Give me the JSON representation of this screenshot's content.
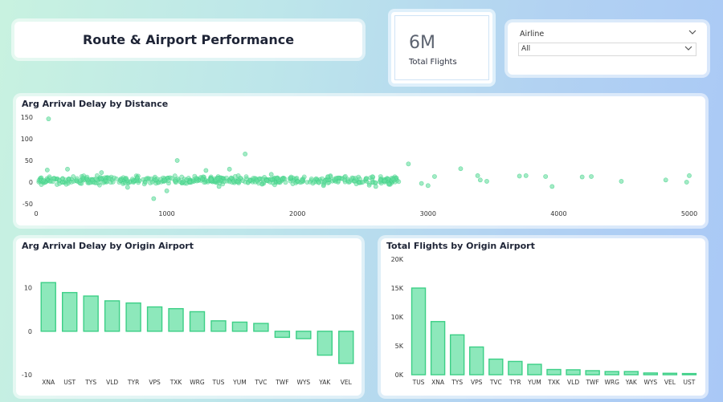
{
  "page_title": "Route & Airport Performance",
  "kpi": {
    "value": "6M",
    "label": "Total Flights"
  },
  "filter": {
    "label": "Airline",
    "value": "All"
  },
  "colors": {
    "fill": "#8de8bb",
    "stroke": "#3ccf86",
    "point": "#66de9e"
  },
  "chart_data": [
    {
      "type": "scatter",
      "title": "Arg Arrival Delay by Distance",
      "xlim": [
        0,
        5000
      ],
      "ylim": [
        -50,
        150
      ],
      "x_ticks": [
        "0",
        "1000",
        "2000",
        "3000",
        "4000",
        "5000"
      ],
      "y_ticks": [
        "150",
        "100",
        "50",
        "0",
        "-50"
      ],
      "grid": false,
      "outliers": [
        [
          95,
          146
        ],
        [
          240,
          30
        ],
        [
          85,
          28
        ],
        [
          1080,
          50
        ],
        [
          1300,
          27
        ],
        [
          1480,
          30
        ],
        [
          1600,
          65
        ],
        [
          2850,
          42
        ],
        [
          3250,
          31
        ],
        [
          3380,
          15
        ],
        [
          3400,
          5
        ],
        [
          3450,
          2
        ],
        [
          3700,
          14
        ],
        [
          3750,
          15
        ],
        [
          3900,
          13
        ],
        [
          3950,
          -10
        ],
        [
          4180,
          12
        ],
        [
          4250,
          13
        ],
        [
          4480,
          2
        ],
        [
          4820,
          5
        ],
        [
          4980,
          0
        ],
        [
          5000,
          15
        ],
        [
          2700,
          -5
        ],
        [
          2600,
          -10
        ],
        [
          2550,
          -7
        ],
        [
          2500,
          0
        ],
        [
          900,
          -38
        ],
        [
          1000,
          -20
        ],
        [
          3050,
          13
        ],
        [
          2950,
          -3
        ],
        [
          3000,
          -8
        ],
        [
          2730,
          8
        ],
        [
          1400,
          -10
        ],
        [
          700,
          -12
        ],
        [
          500,
          22
        ],
        [
          1800,
          18
        ],
        [
          2200,
          -8
        ]
      ],
      "dense_band": {
        "x_range": [
          20,
          2780
        ],
        "y_range": [
          -8,
          18
        ],
        "count": 520
      }
    },
    {
      "type": "bar",
      "title": "Arg Arrival Delay by Origin Airport",
      "categories": [
        "XNA",
        "UST",
        "TYS",
        "VLD",
        "TYR",
        "VPS",
        "TXK",
        "WRG",
        "TUS",
        "YUM",
        "TVC",
        "TWF",
        "WYS",
        "YAK",
        "VEL"
      ],
      "values": [
        11.2,
        8.9,
        8.1,
        7.0,
        6.5,
        5.6,
        5.2,
        4.5,
        2.4,
        2.1,
        1.8,
        -1.4,
        -1.7,
        -5.5,
        -7.4
      ],
      "ylim": [
        -10,
        14
      ],
      "y_ticks": [
        10,
        0,
        -10
      ]
    },
    {
      "type": "bar",
      "title": "Total Flights by Origin Airport",
      "categories": [
        "TUS",
        "XNA",
        "TYS",
        "VPS",
        "TVC",
        "TYR",
        "YUM",
        "TXK",
        "VLD",
        "TWF",
        "WRG",
        "YAK",
        "WYS",
        "VEL",
        "UST"
      ],
      "values": [
        15000,
        9200,
        6900,
        4800,
        2700,
        2300,
        1800,
        900,
        850,
        700,
        550,
        550,
        300,
        250,
        200
      ],
      "ylim": [
        0,
        20000
      ],
      "y_ticks": [
        "20K",
        "15K",
        "10K",
        "5K",
        "0K"
      ],
      "y_tick_values": [
        20000,
        15000,
        10000,
        5000,
        0
      ]
    }
  ]
}
